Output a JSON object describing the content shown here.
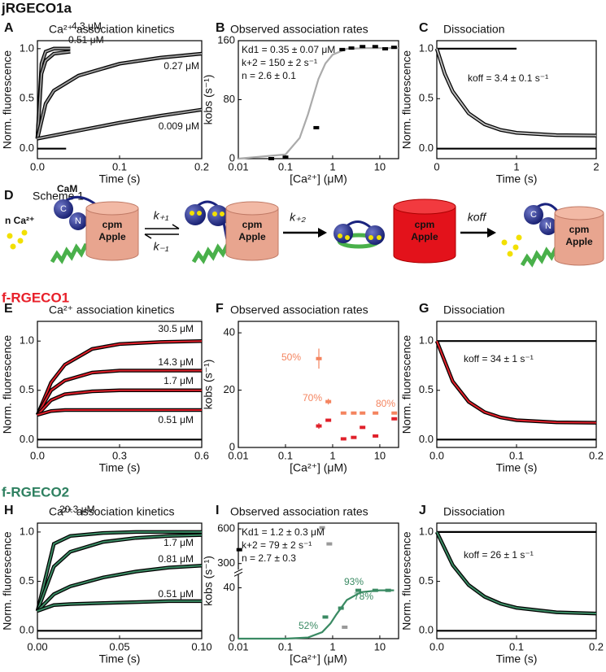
{
  "sections": [
    "jRGECO1a",
    "f-RGECO1",
    "f-RGECO2"
  ],
  "scheme": {
    "label": "D",
    "title": "Scheme 1",
    "ca": "n Ca²⁺",
    "cam": "CaM",
    "c": "C",
    "n": "N",
    "cylinder_top": "cpm",
    "cylinder_bottom": "Apple",
    "k1": "k₊₁",
    "km1": "k₋₁",
    "k2": "k₊₂",
    "koff": "koff"
  },
  "chart_data": [
    {
      "type": "line",
      "label": "A",
      "title": "Ca²⁺ association kinetics",
      "xlabel": "Time (s)",
      "ylabel": "Norm. fluorescence",
      "xlim": [
        0,
        0.2
      ],
      "ylim": [
        -0.1,
        1.08
      ],
      "xticks": [
        {
          "value": 0,
          "label": "0.0"
        },
        0.1,
        0.2
      ],
      "yticks": [
        {
          "value": 0,
          "label": "0.0"
        },
        0.5,
        {
          "value": 1,
          "label": "1.0"
        }
      ],
      "series": [
        {
          "name": "4.3 μM",
          "color": "#9a9a9a",
          "edge": "#000000",
          "x": [
            0,
            0.005,
            0.01,
            0.02,
            0.04
          ],
          "values": [
            0.1,
            0.85,
            0.97,
            1.0,
            1.0
          ]
        },
        {
          "name": "0.51 μM",
          "color": "#9a9a9a",
          "edge": "#000000",
          "x": [
            0,
            0.005,
            0.01,
            0.02,
            0.04
          ],
          "values": [
            0.1,
            0.75,
            0.88,
            0.95,
            0.97
          ]
        },
        {
          "name": "0.27 μM",
          "color": "#9a9a9a",
          "edge": "#000000",
          "x": [
            0,
            0.01,
            0.02,
            0.05,
            0.1,
            0.15,
            0.2
          ],
          "values": [
            0.1,
            0.45,
            0.58,
            0.73,
            0.85,
            0.91,
            0.95
          ]
        },
        {
          "name": "0.009 μM",
          "color": "#9a9a9a",
          "edge": "#000000",
          "x": [
            0,
            0.05,
            0.1,
            0.15,
            0.2
          ],
          "values": [
            0.1,
            0.18,
            0.26,
            0.33,
            0.39
          ]
        },
        {
          "color": "#000000",
          "x": [
            0,
            0.035
          ],
          "values": [
            0,
            0
          ]
        }
      ]
    },
    {
      "type": "scatter",
      "label": "B",
      "title": "Observed association rates",
      "xlabel": "[Ca²⁺] (μM)",
      "ylabel": "kobs (s⁻¹)",
      "xlog": true,
      "xlim": [
        0.01,
        25
      ],
      "ylim": [
        0,
        160
      ],
      "xticks": [
        0.01,
        0.1,
        1,
        10
      ],
      "yticks": [
        0,
        80,
        160
      ],
      "annotations": [
        {
          "text": "Kd1 = 0.35 ± 0.07 μM"
        },
        {
          "text": "k+2 = 150 ± 2 s⁻¹"
        },
        {
          "text": "n = 2.6 ± 0.1"
        }
      ],
      "series": [
        {
          "color": "#aaaaaa",
          "x": [
            0.01,
            0.1,
            0.2,
            0.3,
            0.5,
            0.7,
            1,
            2,
            5,
            25
          ],
          "values": [
            0,
            5.6,
            28,
            60,
            108,
            129,
            141,
            149,
            150,
            150
          ]
        },
        {
          "color": "#000000",
          "markers": true,
          "line": false,
          "x": [
            0.05,
            0.1,
            0.45,
            1.6,
            2.5,
            4.3,
            8,
            13,
            20
          ],
          "values": [
            0,
            2,
            42,
            148,
            150,
            152,
            152,
            149,
            151
          ]
        }
      ]
    },
    {
      "type": "line",
      "label": "C",
      "title": "Dissociation",
      "xlabel": "Time (s)",
      "ylabel": "Norm. fluorescence",
      "xlim": [
        0,
        2
      ],
      "ylim": [
        -0.1,
        1.08
      ],
      "xticks": [
        0,
        1,
        2
      ],
      "yticks": [
        {
          "value": 0,
          "label": "0.0"
        },
        0.5,
        {
          "value": 1,
          "label": "1.0"
        }
      ],
      "annotations": [
        {
          "text": "koff = 3.4 ± 0.1 s⁻¹"
        }
      ],
      "series": [
        {
          "color": "#000000",
          "x": [
            0,
            1
          ],
          "values": [
            1,
            1
          ]
        },
        {
          "color": "#bbbbbb",
          "edge": "#000000",
          "x": [
            0,
            0.1,
            0.2,
            0.4,
            0.6,
            0.8,
            1,
            1.5,
            2
          ],
          "values": [
            1,
            0.749,
            0.571,
            0.353,
            0.243,
            0.187,
            0.159,
            0.135,
            0.131
          ]
        },
        {
          "color": "#000000",
          "x": [
            0,
            2
          ],
          "values": [
            0,
            0
          ]
        }
      ]
    },
    {
      "type": "line",
      "label": "E",
      "title": "Ca²⁺ association kinetics",
      "xlabel": "Time (s)",
      "ylabel": "Norm. fluorescence",
      "xlim": [
        0,
        0.6
      ],
      "ylim": [
        -0.08,
        1.2
      ],
      "xticks": [
        {
          "value": 0,
          "label": "0.0"
        },
        0.3,
        0.6
      ],
      "yticks": [
        {
          "value": 0,
          "label": "0.0"
        },
        0.5,
        {
          "value": 1,
          "label": "1.0"
        }
      ],
      "series": [
        {
          "name": "30.5 μM",
          "color": "#e0202a",
          "edge": "#000000",
          "x": [
            0,
            0.05,
            0.1,
            0.2,
            0.3,
            0.45,
            0.6
          ],
          "values": [
            0.25,
            0.58,
            0.76,
            0.92,
            0.97,
            0.99,
            1.0
          ]
        },
        {
          "name": "14.3 μM",
          "color": "#e0202a",
          "edge": "#000000",
          "x": [
            0,
            0.05,
            0.1,
            0.2,
            0.3,
            0.45,
            0.6
          ],
          "values": [
            0.25,
            0.5,
            0.6,
            0.68,
            0.7,
            0.7,
            0.7
          ]
        },
        {
          "name": "1.7 μM",
          "color": "#e0202a",
          "edge": "#000000",
          "x": [
            0,
            0.05,
            0.1,
            0.2,
            0.3,
            0.45,
            0.6
          ],
          "values": [
            0.25,
            0.4,
            0.46,
            0.49,
            0.5,
            0.5,
            0.5
          ]
        },
        {
          "name": "0.51 μM",
          "color": "#e0202a",
          "edge": "#000000",
          "x": [
            0,
            0.05,
            0.1,
            0.2,
            0.3,
            0.45,
            0.6
          ],
          "values": [
            0.25,
            0.29,
            0.3,
            0.3,
            0.3,
            0.3,
            0.3
          ]
        },
        {
          "color": "#000000",
          "x": [
            0,
            0.6
          ],
          "values": [
            0,
            0
          ]
        }
      ]
    },
    {
      "type": "scatter",
      "label": "F",
      "title": "Observed association rates",
      "xlabel": "[Ca²⁺] (μM)",
      "ylabel": "kobs (s⁻¹)",
      "xlog": true,
      "xlim": [
        0.01,
        25
      ],
      "ylim": [
        0,
        44
      ],
      "xticks": [
        0.01,
        0.1,
        1,
        10
      ],
      "yticks": [
        0,
        20,
        40
      ],
      "annotations": [
        {
          "text": "50%",
          "color": "#f4845f"
        },
        {
          "text": "70%",
          "color": "#f4845f"
        },
        {
          "text": "80%",
          "color": "#f4845f"
        }
      ],
      "series": [
        {
          "color": "#f4845f",
          "markers": true,
          "line": false,
          "x": [
            0.51,
            0.81,
            1.7,
            2.8,
            4.3,
            8.1,
            20.3
          ],
          "values": [
            31,
            16,
            12,
            12,
            12,
            12,
            12
          ],
          "errors": [
            3.5,
            1,
            0.5,
            0.5,
            0.5,
            0.5,
            0.5
          ]
        },
        {
          "color": "#e0202a",
          "markers": true,
          "line": false,
          "x": [
            0.51,
            0.81,
            1.7,
            2.8,
            4.3,
            8.1,
            20.3
          ],
          "values": [
            7.5,
            9.5,
            3,
            3.5,
            7,
            4,
            10
          ],
          "errors": [
            1,
            0.5,
            0.5,
            0.5,
            0.5,
            0.5,
            0.5
          ]
        }
      ]
    },
    {
      "type": "line",
      "label": "G",
      "title": "Dissociation",
      "xlabel": "Time (s)",
      "ylabel": "Norm. fluorescence",
      "xlim": [
        0,
        0.2
      ],
      "ylim": [
        -0.08,
        1.2
      ],
      "xticks": [
        {
          "value": 0,
          "label": "0.0"
        },
        0.1,
        0.2
      ],
      "yticks": [
        {
          "value": 0,
          "label": "0.0"
        },
        0.5,
        {
          "value": 1,
          "label": "1.0"
        }
      ],
      "annotations": [
        {
          "text": "koff = 34 ± 1 s⁻¹"
        }
      ],
      "series": [
        {
          "color": "#000000",
          "x": [
            0,
            0.2
          ],
          "values": [
            1,
            1
          ]
        },
        {
          "color": "#e0202a",
          "edge": "#000000",
          "x": [
            0,
            0.02,
            0.04,
            0.06,
            0.08,
            0.1,
            0.15,
            0.2
          ],
          "values": [
            1,
            0.59,
            0.383,
            0.278,
            0.225,
            0.197,
            0.175,
            0.171
          ]
        },
        {
          "color": "#000000",
          "x": [
            0,
            0.2
          ],
          "values": [
            0,
            0
          ]
        }
      ]
    },
    {
      "type": "line",
      "label": "H",
      "title": "Ca²⁺ association kinetics",
      "xlabel": "Time (s)",
      "ylabel": "Norm. fluorescence",
      "xlim": [
        0,
        0.1
      ],
      "ylim": [
        -0.08,
        1.09
      ],
      "xticks": [
        {
          "value": 0,
          "label": "0.00"
        },
        0.05,
        {
          "value": 0.1,
          "label": "0.10"
        }
      ],
      "yticks": [
        {
          "value": 0,
          "label": "0.0"
        },
        0.5,
        {
          "value": 1,
          "label": "1.0"
        }
      ],
      "series": [
        {
          "name": "20.3 μM",
          "color": "#3a8a63",
          "edge": "#000000",
          "x": [
            0,
            0.01,
            0.02,
            0.04,
            0.06,
            0.08,
            0.1
          ],
          "values": [
            0.2,
            0.88,
            0.96,
            0.99,
            1.0,
            1.0,
            1.0
          ]
        },
        {
          "name": "1.7 μM",
          "color": "#3a8a63",
          "edge": "#000000",
          "x": [
            0,
            0.01,
            0.02,
            0.04,
            0.06,
            0.08,
            0.1
          ],
          "values": [
            0.2,
            0.65,
            0.8,
            0.9,
            0.94,
            0.96,
            0.97
          ]
        },
        {
          "name": "0.81 μM",
          "color": "#3a8a63",
          "edge": "#000000",
          "x": [
            0,
            0.01,
            0.02,
            0.04,
            0.06,
            0.08,
            0.1
          ],
          "values": [
            0.2,
            0.37,
            0.45,
            0.54,
            0.6,
            0.64,
            0.66
          ]
        },
        {
          "name": "0.51 μM",
          "color": "#3a8a63",
          "edge": "#000000",
          "x": [
            0,
            0.01,
            0.02,
            0.04,
            0.06,
            0.08,
            0.1
          ],
          "values": [
            0.2,
            0.26,
            0.27,
            0.28,
            0.29,
            0.3,
            0.3
          ]
        },
        {
          "color": "#000000",
          "x": [
            0,
            0.1
          ],
          "values": [
            0,
            0
          ]
        }
      ]
    },
    {
      "type": "scatter",
      "label": "I",
      "title": "Observed association rates",
      "xlabel": "[Ca²⁺] (μM)",
      "ylabel": "kobs (s⁻¹)",
      "xlog": true,
      "xlim": [
        0.01,
        25
      ],
      "ylim": [
        0,
        650
      ],
      "ybreak": [
        50,
        250
      ],
      "xticks": [
        0.01,
        0.1,
        1,
        10
      ],
      "yticks": [
        0,
        40,
        300,
        600
      ],
      "annotations": [
        {
          "text": "Kd1 = 1.2 ± 0.3 μM"
        },
        {
          "text": "k+2 = 79 ± 2 s⁻¹"
        },
        {
          "text": "n = 2.7 ± 0.3"
        },
        {
          "text": "52%",
          "color": "#3a8a63"
        },
        {
          "text": "78%",
          "color": "#3a8a63"
        },
        {
          "text": "93%",
          "color": "#3a8a63"
        }
      ],
      "series": [
        {
          "color": "#3a8a63",
          "x": [
            0.01,
            0.1,
            0.3,
            0.6,
            0.9,
            1.2,
            2,
            4,
            10,
            20
          ],
          "values": [
            0,
            0,
            0.88,
            5.1,
            12,
            19,
            30.4,
            36.6,
            38,
            38
          ]
        },
        {
          "color": "#3a8a63",
          "markers": true,
          "line": false,
          "x": [
            0.7,
            1.5,
            3.5,
            8,
            15
          ],
          "values": [
            17,
            24,
            38,
            38,
            38
          ]
        },
        {
          "color": "#999999",
          "markers": true,
          "line": false,
          "x": [
            0.6,
            0.85,
            1.8
          ],
          "values": [
            610,
            470,
            9
          ]
        },
        {
          "color": "#000000",
          "markers": true,
          "line": false,
          "x": [
            0.0105
          ],
          "values": [
            420
          ]
        }
      ]
    },
    {
      "type": "line",
      "label": "J",
      "title": "Dissociation",
      "xlabel": "Time (s)",
      "ylabel": "Norm. fluorescence",
      "xlim": [
        0,
        0.2
      ],
      "ylim": [
        -0.08,
        1.09
      ],
      "xticks": [
        {
          "value": 0,
          "label": "0.0"
        },
        0.1,
        0.2
      ],
      "yticks": [
        {
          "value": 0,
          "label": "0.0"
        },
        0.5,
        {
          "value": 1,
          "label": "1.0"
        }
      ],
      "annotations": [
        {
          "text": "koff = 26 ± 1 s⁻¹"
        }
      ],
      "series": [
        {
          "color": "#000000",
          "x": [
            0,
            0.2
          ],
          "values": [
            1,
            1
          ]
        },
        {
          "color": "#3a8a63",
          "edge": "#000000",
          "x": [
            0,
            0.02,
            0.04,
            0.06,
            0.08,
            0.1,
            0.15,
            0.2
          ],
          "values": [
            1,
            0.664,
            0.463,
            0.344,
            0.274,
            0.232,
            0.187,
            0.175
          ]
        },
        {
          "color": "#000000",
          "x": [
            0,
            0.2
          ],
          "values": [
            0,
            0
          ]
        }
      ]
    }
  ]
}
